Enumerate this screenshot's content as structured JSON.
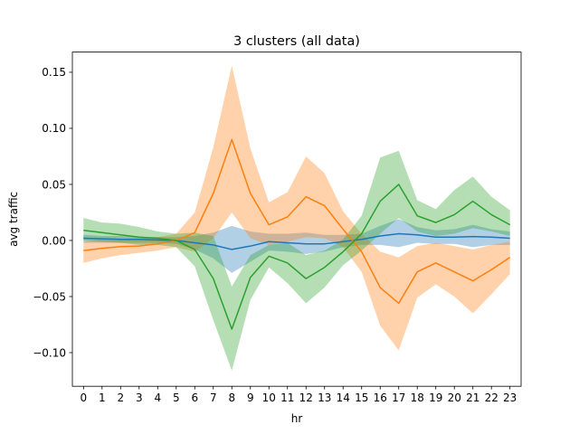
{
  "chart_data": {
    "type": "line",
    "title": "3 clusters (all data)",
    "xlabel": "hr",
    "ylabel": "avg traffic",
    "xlim": [
      -0.6,
      23.6
    ],
    "ylim": [
      -0.13,
      0.168
    ],
    "x": [
      0,
      1,
      2,
      3,
      4,
      5,
      6,
      7,
      8,
      9,
      10,
      11,
      12,
      13,
      14,
      15,
      16,
      17,
      18,
      19,
      20,
      21,
      22,
      23
    ],
    "xticks": [
      "0",
      "1",
      "2",
      "3",
      "4",
      "5",
      "6",
      "7",
      "8",
      "9",
      "10",
      "11",
      "12",
      "13",
      "14",
      "15",
      "16",
      "17",
      "18",
      "19",
      "20",
      "21",
      "22",
      "23"
    ],
    "yticks": [
      {
        "value": 0.15,
        "label": "0.15"
      },
      {
        "value": 0.1,
        "label": "0.10"
      },
      {
        "value": 0.05,
        "label": "0.05"
      },
      {
        "value": 0.0,
        "label": "0.00"
      },
      {
        "value": -0.05,
        "label": "−0.05"
      },
      {
        "value": -0.1,
        "label": "−0.10"
      }
    ],
    "grid": false,
    "series": [
      {
        "color": "#1f77b4",
        "values": [
          0.002,
          0.0015,
          0.001,
          0.001,
          0.0005,
          0.0,
          -0.002,
          -0.004,
          -0.008,
          -0.005,
          -0.001,
          -0.002,
          -0.003,
          -0.003,
          -0.001,
          0.001,
          0.004,
          0.006,
          0.005,
          0.003,
          0.003,
          0.0035,
          0.003,
          0.002
        ],
        "upper": [
          0.005,
          0.004,
          0.004,
          0.003,
          0.003,
          0.003,
          0.004,
          0.007,
          0.013,
          0.008,
          0.006,
          0.006,
          0.007,
          0.005,
          0.005,
          0.006,
          0.013,
          0.019,
          0.012,
          0.009,
          0.01,
          0.014,
          0.01,
          0.008
        ],
        "lower": [
          -0.002,
          -0.002,
          -0.002,
          -0.002,
          -0.002,
          -0.003,
          -0.008,
          -0.016,
          -0.029,
          -0.019,
          -0.009,
          -0.01,
          -0.012,
          -0.01,
          -0.006,
          -0.004,
          -0.004,
          -0.006,
          -0.002,
          -0.003,
          -0.003,
          -0.006,
          -0.004,
          -0.004
        ]
      },
      {
        "color": "#ff7f0e",
        "values": [
          -0.009,
          -0.007,
          -0.0055,
          -0.005,
          -0.003,
          0.0,
          0.007,
          0.042,
          0.09,
          0.042,
          0.014,
          0.021,
          0.039,
          0.031,
          0.01,
          -0.01,
          -0.042,
          -0.056,
          -0.028,
          -0.02,
          -0.028,
          -0.036,
          -0.026,
          -0.015
        ],
        "upper": [
          -0.001,
          0.001,
          0.001,
          0.002,
          0.003,
          0.006,
          0.025,
          0.083,
          0.156,
          0.082,
          0.034,
          0.043,
          0.075,
          0.06,
          0.026,
          0.006,
          -0.01,
          -0.015,
          -0.005,
          -0.002,
          -0.005,
          -0.008,
          -0.004,
          -0.001
        ],
        "lower": [
          -0.02,
          -0.016,
          -0.013,
          -0.011,
          -0.009,
          -0.006,
          -0.01,
          0.002,
          0.025,
          0.002,
          -0.004,
          -0.001,
          0.003,
          0.002,
          -0.006,
          -0.028,
          -0.076,
          -0.098,
          -0.051,
          -0.039,
          -0.05,
          -0.065,
          -0.048,
          -0.03
        ]
      },
      {
        "color": "#2ca02c",
        "values": [
          0.009,
          0.007,
          0.005,
          0.003,
          0.002,
          0.0,
          -0.008,
          -0.034,
          -0.079,
          -0.033,
          -0.014,
          -0.02,
          -0.034,
          -0.024,
          -0.01,
          0.006,
          0.035,
          0.05,
          0.022,
          0.016,
          0.023,
          0.035,
          0.023,
          0.014
        ],
        "upper": [
          0.02,
          0.016,
          0.015,
          0.012,
          0.008,
          0.006,
          0.007,
          0.004,
          -0.041,
          -0.013,
          -0.004,
          -0.002,
          -0.013,
          -0.009,
          0.001,
          0.022,
          0.074,
          0.08,
          0.036,
          0.028,
          0.045,
          0.057,
          0.039,
          0.027
        ],
        "lower": [
          0.0,
          -0.001,
          -0.002,
          -0.004,
          -0.004,
          -0.006,
          -0.023,
          -0.071,
          -0.116,
          -0.053,
          -0.024,
          -0.038,
          -0.056,
          -0.042,
          -0.022,
          -0.009,
          0.006,
          0.02,
          0.008,
          0.004,
          0.006,
          0.011,
          0.008,
          0.004
        ]
      }
    ]
  }
}
